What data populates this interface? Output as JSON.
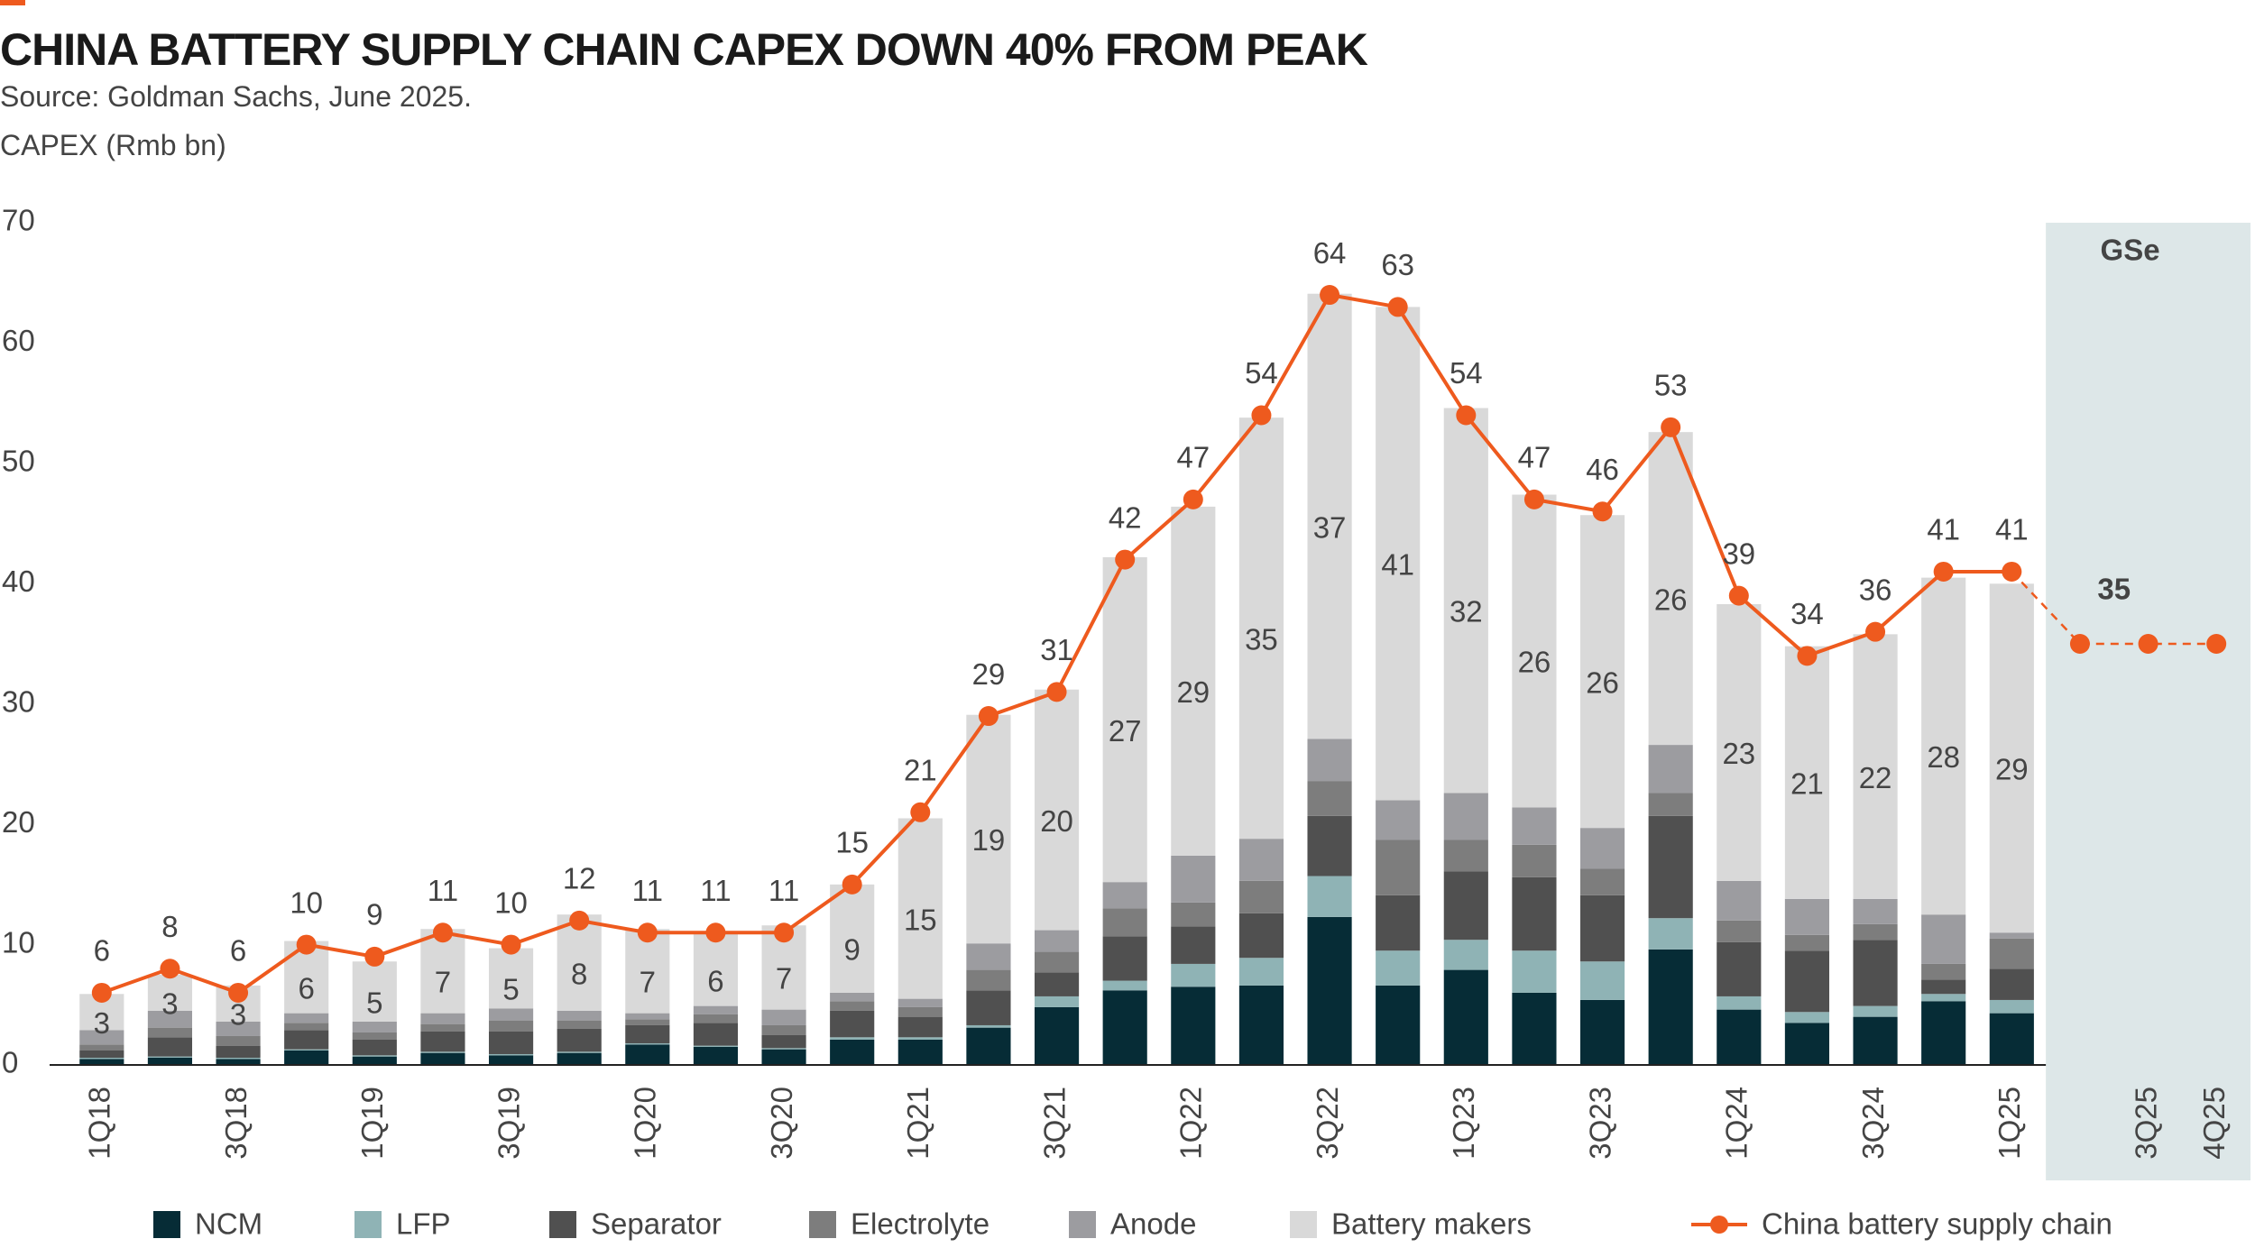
{
  "chart_data": {
    "type": "bar",
    "stacked": true,
    "title": "CHINA BATTERY SUPPLY CHAIN CAPEX DOWN 40% FROM PEAK",
    "subtitle": "Source: Goldman Sachs, June 2025.",
    "y_label": "CAPEX (Rmb bn)",
    "annotation": "GSe",
    "categories": [
      "1Q18",
      null,
      "3Q18",
      null,
      "1Q19",
      null,
      "3Q19",
      null,
      "1Q20",
      null,
      "3Q20",
      null,
      "1Q21",
      null,
      "3Q21",
      null,
      "1Q22",
      null,
      "3Q22",
      null,
      "1Q23",
      null,
      "3Q23",
      null,
      "1Q24",
      null,
      "3Q24",
      null,
      "1Q25",
      null,
      "3Q25",
      "4Q25"
    ],
    "ylim": [
      0,
      70
    ],
    "yticks": [
      0,
      10,
      20,
      30,
      40,
      50,
      60,
      70
    ],
    "grid": false,
    "series": [
      {
        "name": "NCM",
        "type": "bar",
        "color": "#062c36",
        "values": [
          0.5,
          0.6,
          0.5,
          1.2,
          0.7,
          1,
          0.8,
          1,
          1.7,
          1.5,
          1.3,
          2.1,
          2.1,
          3.1,
          4.8,
          6.2,
          6.5,
          6.6,
          12.3,
          6.6,
          7.9,
          6,
          5.4,
          9.6,
          4.6,
          3.5,
          4,
          5.3,
          4.3,
          null,
          null,
          null
        ]
      },
      {
        "name": "LFP",
        "type": "bar",
        "color": "#8fb3b5",
        "values": [
          0.1,
          0.1,
          0.1,
          0.1,
          0.1,
          0.1,
          0.1,
          0.1,
          0.1,
          0.1,
          0.1,
          0.2,
          0.2,
          0.2,
          0.9,
          0.8,
          1.9,
          2.3,
          3.4,
          2.9,
          2.5,
          3.5,
          3.2,
          2.6,
          1.1,
          0.9,
          0.9,
          0.6,
          1.1,
          null,
          null,
          null
        ]
      },
      {
        "name": "Separator",
        "type": "bar",
        "color": "#505050",
        "values": [
          0.6,
          1.6,
          1,
          1.6,
          1.3,
          1.7,
          1.9,
          1.9,
          1.5,
          1.9,
          1.1,
          2.2,
          1.7,
          2.9,
          2,
          3.7,
          3.1,
          3.7,
          5,
          4.6,
          5.7,
          6.1,
          5.5,
          8.5,
          4.5,
          5.1,
          5.5,
          1.2,
          2.6,
          null,
          null,
          null
        ]
      },
      {
        "name": "Electrolyte",
        "type": "bar",
        "color": "#7d7d7d",
        "values": [
          0.5,
          0.8,
          0.8,
          0.6,
          0.6,
          0.6,
          0.9,
          0.7,
          0.5,
          0.7,
          0.8,
          0.8,
          0.8,
          1.7,
          1.7,
          2.3,
          2,
          2.7,
          2.9,
          4.6,
          2.6,
          2.7,
          2.2,
          1.9,
          1.8,
          1.3,
          1.3,
          1.3,
          2.5,
          null,
          null,
          null
        ]
      },
      {
        "name": "Anode",
        "type": "bar",
        "color": "#9c9ca0",
        "values": [
          1.2,
          1.4,
          1.2,
          0.8,
          0.9,
          0.9,
          1,
          0.8,
          0.5,
          0.7,
          1.3,
          0.7,
          0.7,
          2.2,
          1.8,
          2.2,
          3.9,
          3.5,
          3.5,
          3.3,
          3.9,
          3.1,
          3.4,
          4,
          3.3,
          3,
          2.1,
          4.1,
          0.5,
          null,
          null,
          null
        ]
      },
      {
        "name": "Battery makers",
        "type": "bar",
        "color": "#d9d9d9",
        "values": [
          3,
          3,
          3,
          6,
          5,
          7,
          5,
          8,
          7,
          6,
          7,
          9,
          15,
          19,
          20,
          27,
          29,
          35,
          37,
          41,
          32,
          26,
          26,
          26,
          23,
          21,
          22,
          28,
          29,
          null,
          null,
          null
        ]
      },
      {
        "name": "China battery supply chain",
        "type": "line",
        "color": "#ee5a1e",
        "values": [
          6,
          8,
          6,
          10,
          9,
          11,
          10,
          12,
          11,
          11,
          11,
          15,
          21,
          29,
          31,
          42,
          47,
          54,
          64,
          63,
          54,
          47,
          46,
          53,
          39,
          34,
          36,
          41,
          41,
          35,
          35,
          35
        ],
        "value_labels": [
          "6",
          "8",
          "6",
          "10",
          "9",
          "11",
          "10",
          "12",
          "11",
          "11",
          "11",
          "15",
          "21",
          "29",
          "31",
          "42",
          "47",
          "54",
          "64",
          "63",
          "54",
          "47",
          "46",
          "53",
          "39",
          "34",
          "36",
          "41",
          "41",
          null,
          "35",
          null
        ]
      }
    ]
  }
}
